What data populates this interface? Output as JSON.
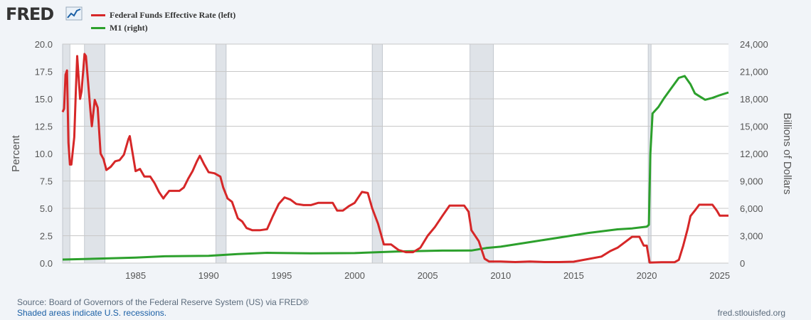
{
  "header": {
    "logo_text": "FRED"
  },
  "icons": {
    "logo": "line-chart-icon"
  },
  "colors": {
    "series1": "#d62728",
    "series2": "#2ca02c",
    "recession": "#dfe3e8",
    "grid": "#c8c8c8",
    "plot_bg": "#ffffff"
  },
  "footer": {
    "source": "Source: Board of Governors of the Federal Reserve System (US) via FRED®",
    "note": "Shaded areas indicate U.S. recessions.",
    "url": "fred.stlouisfed.org"
  },
  "chart_data": {
    "type": "line",
    "xlabel": "",
    "ylabel_left": "Percent",
    "ylabel_right": "Billions of Dollars",
    "xlim": [
      1980.0,
      2025.6
    ],
    "ylim_left": [
      0,
      20
    ],
    "ylim_right": [
      0,
      24000
    ],
    "x_ticks": [
      1985,
      1990,
      1995,
      2000,
      2005,
      2010,
      2015,
      2020,
      2025
    ],
    "y_ticks_left": [
      "0.0",
      "2.5",
      "5.0",
      "7.5",
      "10.0",
      "12.5",
      "15.0",
      "17.5",
      "20.0"
    ],
    "y_ticks_right": [
      "0",
      "3,000",
      "6,000",
      "9,000",
      "12,000",
      "15,000",
      "18,000",
      "21,000",
      "24,000"
    ],
    "grid": "horizontal",
    "legend_placement": "top-left",
    "recessions": [
      [
        1980.0,
        1980.5
      ],
      [
        1981.5,
        1982.9
      ],
      [
        1990.5,
        1991.2
      ],
      [
        2001.2,
        2001.9
      ],
      [
        2007.9,
        2009.5
      ],
      [
        2020.1,
        2020.3
      ]
    ],
    "series": [
      {
        "name": "Federal Funds Effective Rate (left)",
        "axis": "left",
        "points": [
          [
            1980.0,
            13.8
          ],
          [
            1980.1,
            14.1
          ],
          [
            1980.2,
            17.2
          ],
          [
            1980.3,
            17.6
          ],
          [
            1980.4,
            11.0
          ],
          [
            1980.5,
            9.0
          ],
          [
            1980.6,
            9.0
          ],
          [
            1980.8,
            11.5
          ],
          [
            1980.9,
            15.5
          ],
          [
            1981.0,
            18.9
          ],
          [
            1981.2,
            15.0
          ],
          [
            1981.3,
            15.7
          ],
          [
            1981.5,
            19.1
          ],
          [
            1981.6,
            18.9
          ],
          [
            1981.9,
            14.0
          ],
          [
            1982.0,
            12.5
          ],
          [
            1982.2,
            14.9
          ],
          [
            1982.4,
            14.2
          ],
          [
            1982.6,
            10.0
          ],
          [
            1982.8,
            9.5
          ],
          [
            1983.0,
            8.5
          ],
          [
            1983.3,
            8.8
          ],
          [
            1983.6,
            9.3
          ],
          [
            1983.9,
            9.4
          ],
          [
            1984.2,
            9.9
          ],
          [
            1984.5,
            11.3
          ],
          [
            1984.6,
            11.6
          ],
          [
            1984.8,
            10.0
          ],
          [
            1985.0,
            8.4
          ],
          [
            1985.3,
            8.6
          ],
          [
            1985.6,
            7.9
          ],
          [
            1986.0,
            7.9
          ],
          [
            1986.3,
            7.3
          ],
          [
            1986.6,
            6.5
          ],
          [
            1986.9,
            5.9
          ],
          [
            1987.0,
            6.1
          ],
          [
            1987.3,
            6.6
          ],
          [
            1987.6,
            6.6
          ],
          [
            1988.0,
            6.6
          ],
          [
            1988.3,
            6.9
          ],
          [
            1988.6,
            7.7
          ],
          [
            1988.9,
            8.4
          ],
          [
            1989.2,
            9.3
          ],
          [
            1989.4,
            9.8
          ],
          [
            1989.7,
            9.0
          ],
          [
            1990.0,
            8.3
          ],
          [
            1990.4,
            8.2
          ],
          [
            1990.8,
            7.9
          ],
          [
            1991.0,
            6.9
          ],
          [
            1991.3,
            5.9
          ],
          [
            1991.6,
            5.6
          ],
          [
            1992.0,
            4.1
          ],
          [
            1992.3,
            3.8
          ],
          [
            1992.6,
            3.2
          ],
          [
            1993.0,
            3.0
          ],
          [
            1993.5,
            3.0
          ],
          [
            1994.0,
            3.1
          ],
          [
            1994.4,
            4.3
          ],
          [
            1994.8,
            5.4
          ],
          [
            1995.2,
            6.0
          ],
          [
            1995.6,
            5.8
          ],
          [
            1996.0,
            5.4
          ],
          [
            1996.5,
            5.3
          ],
          [
            1997.0,
            5.3
          ],
          [
            1997.5,
            5.5
          ],
          [
            1998.0,
            5.5
          ],
          [
            1998.5,
            5.5
          ],
          [
            1998.8,
            4.8
          ],
          [
            1999.2,
            4.8
          ],
          [
            1999.6,
            5.2
          ],
          [
            2000.0,
            5.5
          ],
          [
            2000.5,
            6.5
          ],
          [
            2000.9,
            6.4
          ],
          [
            2001.2,
            5.0
          ],
          [
            2001.6,
            3.6
          ],
          [
            2002.0,
            1.7
          ],
          [
            2002.5,
            1.7
          ],
          [
            2003.0,
            1.2
          ],
          [
            2003.5,
            1.0
          ],
          [
            2004.0,
            1.0
          ],
          [
            2004.5,
            1.4
          ],
          [
            2005.0,
            2.5
          ],
          [
            2005.5,
            3.3
          ],
          [
            2006.0,
            4.3
          ],
          [
            2006.5,
            5.25
          ],
          [
            2007.0,
            5.25
          ],
          [
            2007.5,
            5.25
          ],
          [
            2007.8,
            4.7
          ],
          [
            2008.0,
            3.0
          ],
          [
            2008.5,
            2.0
          ],
          [
            2008.9,
            0.4
          ],
          [
            2009.2,
            0.15
          ],
          [
            2010.0,
            0.15
          ],
          [
            2011.0,
            0.1
          ],
          [
            2012.0,
            0.15
          ],
          [
            2013.0,
            0.1
          ],
          [
            2014.0,
            0.1
          ],
          [
            2015.0,
            0.13
          ],
          [
            2015.9,
            0.35
          ],
          [
            2016.9,
            0.6
          ],
          [
            2017.5,
            1.1
          ],
          [
            2018.0,
            1.4
          ],
          [
            2018.5,
            1.9
          ],
          [
            2019.0,
            2.4
          ],
          [
            2019.5,
            2.4
          ],
          [
            2019.8,
            1.6
          ],
          [
            2020.0,
            1.6
          ],
          [
            2020.2,
            0.05
          ],
          [
            2021.0,
            0.08
          ],
          [
            2021.9,
            0.08
          ],
          [
            2022.2,
            0.3
          ],
          [
            2022.5,
            1.6
          ],
          [
            2022.8,
            3.1
          ],
          [
            2023.0,
            4.3
          ],
          [
            2023.3,
            4.8
          ],
          [
            2023.6,
            5.33
          ],
          [
            2024.0,
            5.33
          ],
          [
            2024.5,
            5.33
          ],
          [
            2024.8,
            4.8
          ],
          [
            2025.0,
            4.33
          ],
          [
            2025.6,
            4.33
          ]
        ]
      },
      {
        "name": "M1 (right)",
        "axis": "right",
        "points": [
          [
            1980.0,
            390
          ],
          [
            1985.0,
            600
          ],
          [
            1987.0,
            750
          ],
          [
            1990.0,
            800
          ],
          [
            1992.0,
            1000
          ],
          [
            1994.0,
            1130
          ],
          [
            1997.0,
            1070
          ],
          [
            2000.0,
            1100
          ],
          [
            2003.0,
            1280
          ],
          [
            2006.0,
            1370
          ],
          [
            2008.0,
            1380
          ],
          [
            2009.0,
            1650
          ],
          [
            2010.0,
            1800
          ],
          [
            2012.0,
            2300
          ],
          [
            2014.0,
            2800
          ],
          [
            2016.0,
            3300
          ],
          [
            2018.0,
            3700
          ],
          [
            2019.0,
            3800
          ],
          [
            2020.0,
            4000
          ],
          [
            2020.15,
            4200
          ],
          [
            2020.25,
            12000
          ],
          [
            2020.4,
            16400
          ],
          [
            2020.8,
            17100
          ],
          [
            2021.2,
            18100
          ],
          [
            2021.7,
            19200
          ],
          [
            2022.2,
            20300
          ],
          [
            2022.6,
            20500
          ],
          [
            2023.0,
            19600
          ],
          [
            2023.3,
            18600
          ],
          [
            2023.6,
            18300
          ],
          [
            2024.0,
            17900
          ],
          [
            2024.5,
            18100
          ],
          [
            2025.0,
            18400
          ],
          [
            2025.6,
            18700
          ]
        ]
      }
    ]
  }
}
